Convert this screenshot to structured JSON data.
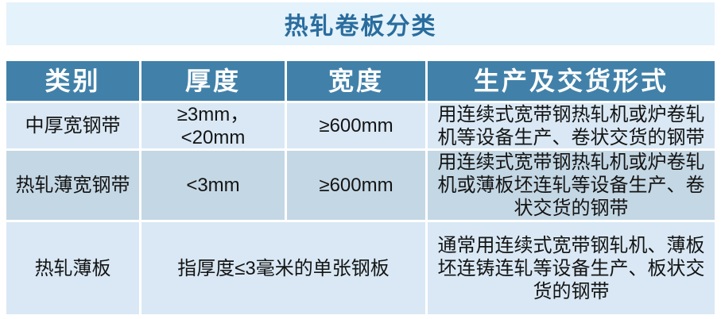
{
  "chart_data": {
    "type": "table",
    "title": "热轧卷板分类",
    "columns": [
      "类别",
      "厚度",
      "宽度",
      "生产及交货形式"
    ],
    "rows": [
      [
        "中厚宽钢带",
        "≥3mm，<20mm",
        "≥600mm",
        "用连续式宽带钢热轧机或炉卷轧机等设备生产、卷状交货的钢带"
      ],
      [
        "热轧薄宽钢带",
        "<3mm",
        "≥600mm",
        "用连续式宽带钢热轧机或炉卷轧机或薄板坯连轧等设备生产、卷状交货的钢带"
      ],
      [
        "热轧薄板",
        "指厚度≤3毫米的单张钢板",
        "通常用连续式宽带钢轧机、薄板坯连铸连轧等设备生产、板状交货的钢带"
      ]
    ],
    "layout_notes": {
      "row3_merged": "第三行的厚度与宽度两列合并为一个单元格",
      "row_striping": "第1、3数据行浅蓝色，第2数据行深灰蓝色",
      "grid": "白色间隔线分隔单元格，无外边框"
    }
  },
  "colors": {
    "title_bg": "#e4f2fb",
    "title_text": "#2a6d9e",
    "header_bg": "#4181a9",
    "header_text": "#ffffff",
    "row_light": "#d9e8f4",
    "row_dark": "#c4d7e4",
    "body_text": "#141414",
    "page_bg": "#ffffff"
  }
}
